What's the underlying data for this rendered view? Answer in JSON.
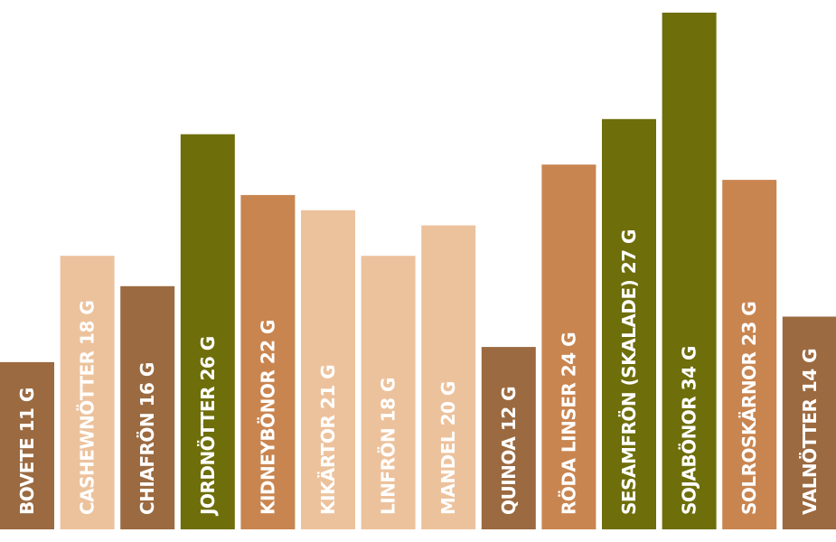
{
  "chart_data": {
    "type": "bar",
    "title": "",
    "xlabel": "",
    "ylabel": "",
    "unit": "G",
    "ylim": [
      0,
      34
    ],
    "grid": false,
    "legend": "none",
    "categories": [
      "BOVETE",
      "CASHEWNÖTTER",
      "CHIAFRÖN",
      "JORDNÖTTER",
      "KIDNEYBÖNOR",
      "KIKÄRTOR",
      "LINFRÖN",
      "MANDEL",
      "QUINOA",
      "RÖDA LINSER",
      "SESAMFRÖN (SKALADE)",
      "SOJABÖNOR",
      "SOLROSKÄRNOR",
      "VALNÖTTER"
    ],
    "values": [
      11,
      18,
      16,
      26,
      22,
      21,
      18,
      20,
      12,
      24,
      27,
      34,
      23,
      14
    ],
    "labels": [
      "BOVETE 11 G",
      "CASHEWNÖTTER 18 G",
      "CHIAFRÖN 16 G",
      "JORDNÖTTER 26 G",
      "KIDNEYBÖNOR 22 G",
      "KIKÄRTOR 21 G",
      "LINFRÖN 18 G",
      "MANDEL 20 G",
      "QUINOA 12 G",
      "RÖDA LINSER 24 G",
      "SESAMFRÖN (SKALADE) 27 G",
      "SOJABÖNOR 34 G",
      "SOLROSKÄRNOR 23 G",
      "VALNÖTTER 14 G"
    ],
    "colors": [
      "#9b6a40",
      "#ecc29d",
      "#9b6a40",
      "#6e6e0b",
      "#c98550",
      "#ecc29d",
      "#ecc29d",
      "#ecc29d",
      "#9b6a40",
      "#c98550",
      "#6e6e0b",
      "#6e6e0b",
      "#c98550",
      "#9b6a40"
    ]
  }
}
